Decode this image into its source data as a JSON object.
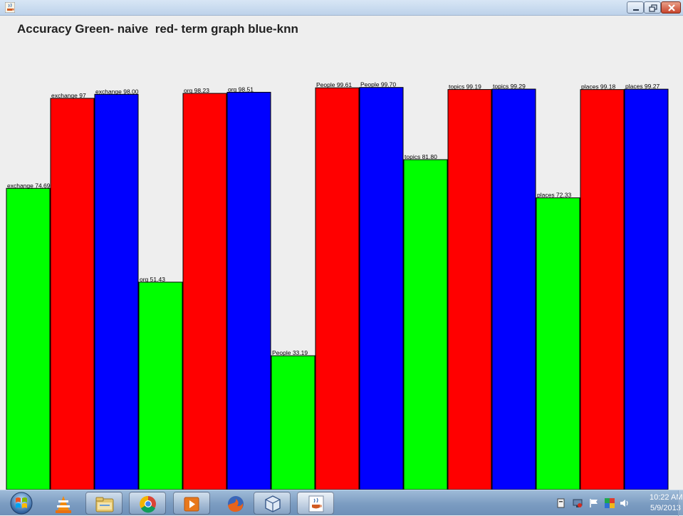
{
  "window": {
    "title_icon": "java-cup-icon",
    "controls": [
      "minimize-icon",
      "maximize-icon",
      "close-icon"
    ]
  },
  "chart_data": {
    "type": "bar",
    "title": "Accuracy Green- naive  red- term graph blue-knn",
    "ylim": [
      0,
      100
    ],
    "grid": false,
    "legend": "none",
    "groups": [
      "exchange",
      "org",
      "People",
      "topics",
      "places"
    ],
    "series": [
      {
        "color": "#00ff00",
        "values": [
          74.69,
          51.43,
          33.19,
          81.8,
          72.33
        ]
      },
      {
        "color": "#ff0000",
        "values": [
          97,
          98.23,
          99.61,
          99.19,
          99.18
        ]
      },
      {
        "color": "#0000ff",
        "values": [
          98.0,
          98.51,
          99.7,
          99.29,
          99.27
        ]
      }
    ],
    "bars": [
      {
        "group": "exchange",
        "series": "green",
        "value": 74.69,
        "label": "exchange 74.69"
      },
      {
        "group": "exchange",
        "series": "red",
        "value": 97,
        "label": "exchange 97"
      },
      {
        "group": "exchange",
        "series": "blue",
        "value": 98.0,
        "label": "exchange 98.00"
      },
      {
        "group": "org",
        "series": "green",
        "value": 51.43,
        "label": "org 51.43"
      },
      {
        "group": "org",
        "series": "red",
        "value": 98.23,
        "label": "org 98.23"
      },
      {
        "group": "org",
        "series": "blue",
        "value": 98.51,
        "label": "org 98.51"
      },
      {
        "group": "People",
        "series": "green",
        "value": 33.19,
        "label": "People 33.19"
      },
      {
        "group": "People",
        "series": "red",
        "value": 99.61,
        "label": "People 99.61"
      },
      {
        "group": "People",
        "series": "blue",
        "value": 99.7,
        "label": "People 99.70"
      },
      {
        "group": "topics",
        "series": "green",
        "value": 81.8,
        "label": "topics 81.80"
      },
      {
        "group": "topics",
        "series": "red",
        "value": 99.19,
        "label": "topics 99.19"
      },
      {
        "group": "topics",
        "series": "blue",
        "value": 99.29,
        "label": "topics 99.29"
      },
      {
        "group": "places",
        "series": "green",
        "value": 72.33,
        "label": "places 72.33"
      },
      {
        "group": "places",
        "series": "red",
        "value": 99.18,
        "label": "places 99.18"
      },
      {
        "group": "places",
        "series": "blue",
        "value": 99.27,
        "label": "places 99.27"
      }
    ]
  },
  "taskbar": {
    "start_icon": "windows-start-orb-icon",
    "pinned": [
      "vlc-icon",
      "file-explorer-icon",
      "chrome-icon",
      "media-player-icon",
      "firefox-icon",
      "virtualbox-icon",
      "java-icon"
    ],
    "tray": [
      "action-center-icon",
      "network-icon",
      "flag-icon",
      "colorful-app-icon",
      "volume-icon"
    ],
    "clock_time": "10:22 AM",
    "clock_date": "5/9/2013"
  }
}
